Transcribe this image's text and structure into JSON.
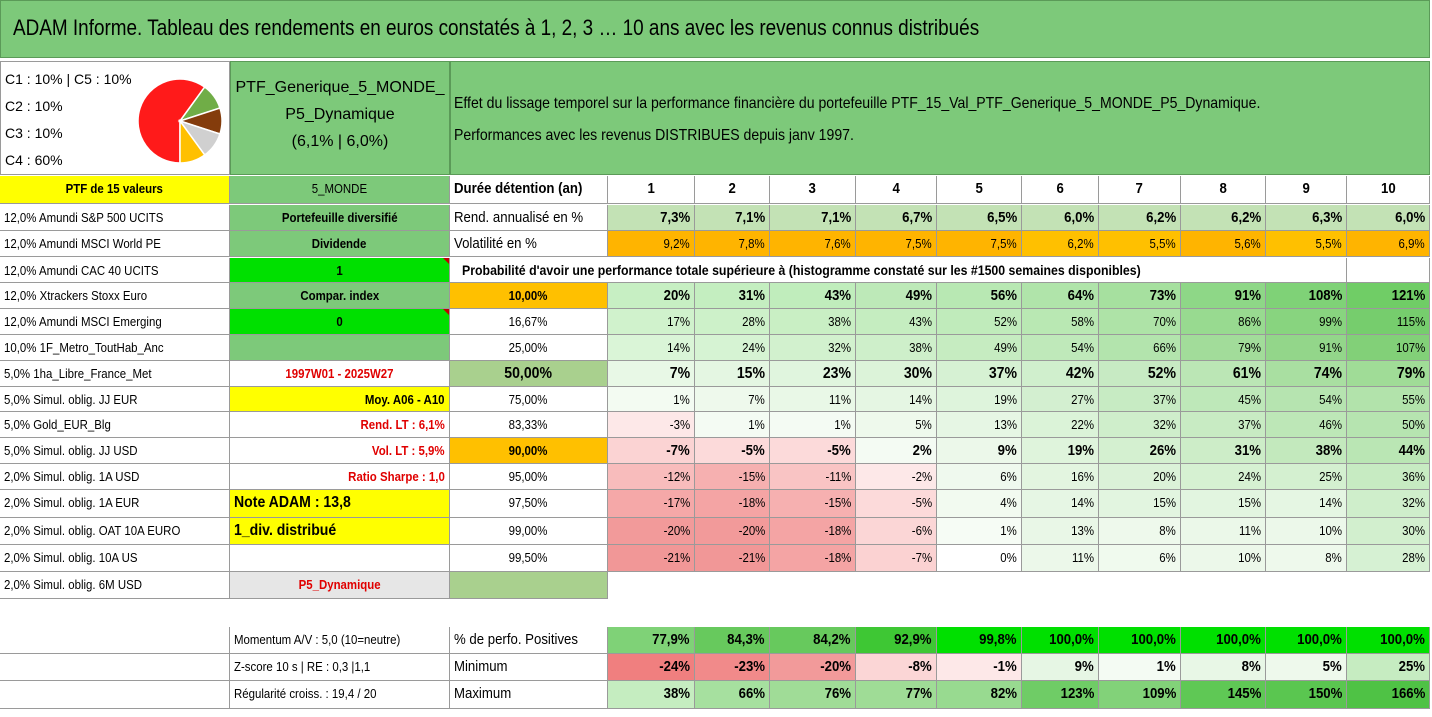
{
  "title": "ADAM Informe. Tableau des rendements en euros constatés à 1, 2, 3 … 10 ans avec les revenus connus distribués",
  "pie": {
    "labels": [
      "C1 : 10% | C5 : 10%",
      "C2 : 10%",
      "C3 : 10%",
      "C4 : 60%"
    ],
    "slices": [
      {
        "value": 60,
        "color": "#ff1a1a"
      },
      {
        "value": 10,
        "color": "#70ad47"
      },
      {
        "value": 10,
        "color": "#843c0c"
      },
      {
        "value": 10,
        "color": "#d0d0d0"
      },
      {
        "value": 10,
        "color": "#ffc000"
      }
    ]
  },
  "ptf": {
    "line1": "PTF_Generique_5_MONDE_",
    "line2": "P5_Dynamique",
    "line3": "(6,1% | 6,0%)"
  },
  "effect": {
    "line1": "Effet du lissage temporel sur la performance financière du portefeuille PTF_15_Val_PTF_Generique_5_MONDE_P5_Dynamique.",
    "line2": "Performances avec les revenus DISTRIBUES depuis janv 1997."
  },
  "holdings": [
    "PTF de 15 valeurs",
    "12,0% Amundi S&P 500 UCITS",
    "12,0% Amundi MSCI World PE",
    "12,0% Amundi CAC 40 UCITS",
    "12,0% Xtrackers Stoxx Euro",
    "12,0% Amundi MSCI Emerging",
    "10,0% 1F_Metro_ToutHab_Anc",
    "5,0% 1ha_Libre_France_Met",
    "5,0% Simul. oblig. JJ EUR",
    "5,0% Gold_EUR_Blg",
    "5,0% Simul. oblig. JJ USD",
    "2,0% Simul. oblig. 1A USD",
    "2,0% Simul. oblig. 1A EUR",
    "2,0% Simul. oblig. OAT 10A EURO",
    "2,0% Simul. oblig. 10A US",
    "2,0% Simul. oblig. 6M USD"
  ],
  "info": [
    "5_MONDE",
    "Portefeuille diversifié",
    "Dividende",
    "1",
    "Compar. index",
    "0",
    "",
    "1997W01 - 2025W27",
    "Moy. A06 - A10",
    "Rend. LT : 6,1%",
    "Vol. LT : 5,9%",
    "Ratio Sharpe : 1,0",
    "Note ADAM : 13,8",
    "1_div. distribué",
    "",
    "P5_Dynamique"
  ],
  "years_label": "Durée détention (an)",
  "years": [
    "1",
    "2",
    "3",
    "4",
    "5",
    "6",
    "7",
    "8",
    "9",
    "10"
  ],
  "rend_label": "Rend. annualisé en %",
  "rend": [
    "7,3%",
    "7,1%",
    "7,1%",
    "6,7%",
    "6,5%",
    "6,0%",
    "6,2%",
    "6,2%",
    "6,3%",
    "6,0%"
  ],
  "vol_label": "Volatilité en %",
  "vol": [
    "9,2%",
    "7,8%",
    "7,6%",
    "7,5%",
    "7,5%",
    "6,2%",
    "5,5%",
    "5,6%",
    "5,5%",
    "6,9%"
  ],
  "prob_heading": "Probabilité d'avoir une performance totale supérieure à (histogramme constaté sur les #1500 semaines disponibles)",
  "prob_rows": [
    {
      "p": "10,00%",
      "v": [
        "20%",
        "31%",
        "43%",
        "49%",
        "56%",
        "64%",
        "73%",
        "91%",
        "108%",
        "121%"
      ]
    },
    {
      "p": "16,67%",
      "v": [
        "17%",
        "28%",
        "38%",
        "43%",
        "52%",
        "58%",
        "70%",
        "86%",
        "99%",
        "115%"
      ]
    },
    {
      "p": "25,00%",
      "v": [
        "14%",
        "24%",
        "32%",
        "38%",
        "49%",
        "54%",
        "66%",
        "79%",
        "91%",
        "107%"
      ]
    },
    {
      "p": "50,00%",
      "v": [
        "7%",
        "15%",
        "23%",
        "30%",
        "37%",
        "42%",
        "52%",
        "61%",
        "74%",
        "79%"
      ]
    },
    {
      "p": "75,00%",
      "v": [
        "1%",
        "7%",
        "11%",
        "14%",
        "19%",
        "27%",
        "37%",
        "45%",
        "54%",
        "55%"
      ]
    },
    {
      "p": "83,33%",
      "v": [
        "-3%",
        "1%",
        "1%",
        "5%",
        "13%",
        "22%",
        "32%",
        "37%",
        "46%",
        "50%"
      ]
    },
    {
      "p": "90,00%",
      "v": [
        "-7%",
        "-5%",
        "-5%",
        "2%",
        "9%",
        "19%",
        "26%",
        "31%",
        "38%",
        "44%"
      ]
    },
    {
      "p": "95,00%",
      "v": [
        "-12%",
        "-15%",
        "-11%",
        "-2%",
        "6%",
        "16%",
        "20%",
        "24%",
        "25%",
        "36%"
      ]
    },
    {
      "p": "97,50%",
      "v": [
        "-17%",
        "-18%",
        "-15%",
        "-5%",
        "4%",
        "14%",
        "15%",
        "15%",
        "14%",
        "32%"
      ]
    },
    {
      "p": "99,00%",
      "v": [
        "-20%",
        "-20%",
        "-18%",
        "-6%",
        "1%",
        "13%",
        "8%",
        "11%",
        "10%",
        "30%"
      ]
    },
    {
      "p": "99,50%",
      "v": [
        "-21%",
        "-21%",
        "-18%",
        "-7%",
        "0%",
        "11%",
        "6%",
        "10%",
        "8%",
        "28%"
      ]
    }
  ],
  "stats": [
    {
      "left": "Momentum A/V : 5,0 (10=neutre)",
      "label": "% de perfo. Positives",
      "v": [
        "77,9%",
        "84,3%",
        "84,2%",
        "92,9%",
        "99,8%",
        "100,0%",
        "100,0%",
        "100,0%",
        "100,0%",
        "100,0%"
      ]
    },
    {
      "left": "Z-score 10 s | RE : 0,3 |1,1",
      "label": "Minimum",
      "v": [
        "-24%",
        "-23%",
        "-20%",
        "-8%",
        "-1%",
        "9%",
        "1%",
        "8%",
        "5%",
        "25%"
      ]
    },
    {
      "left": "Régularité croiss. : 19,4 / 20",
      "label": "Maximum",
      "v": [
        "38%",
        "66%",
        "76%",
        "77%",
        "82%",
        "123%",
        "109%",
        "145%",
        "150%",
        "166%"
      ]
    }
  ]
}
